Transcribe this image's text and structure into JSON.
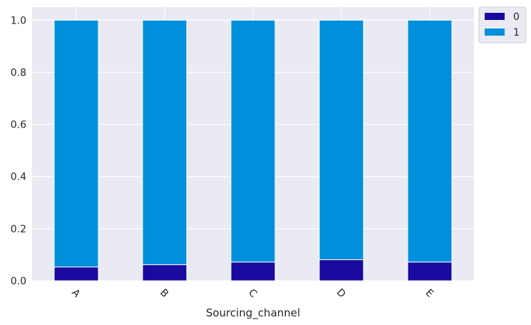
{
  "chart_data": {
    "type": "bar",
    "stacked": true,
    "title": "",
    "xlabel": "Sourcing_channel",
    "ylabel": "",
    "categories": [
      "A",
      "B",
      "C",
      "D",
      "E"
    ],
    "ylim": [
      0,
      1.05
    ],
    "yticks": [
      "0.0",
      "0.2",
      "0.4",
      "0.6",
      "0.8",
      "1.0"
    ],
    "x_tick_rotation": 45,
    "grid": true,
    "legend_position": "outside top-right",
    "series": [
      {
        "name": "0",
        "color": "#1a0aa0",
        "values": [
          0.053,
          0.062,
          0.072,
          0.081,
          0.072
        ]
      },
      {
        "name": "1",
        "color": "#008fdb",
        "values": [
          0.947,
          0.938,
          0.928,
          0.919,
          0.928
        ]
      }
    ]
  }
}
